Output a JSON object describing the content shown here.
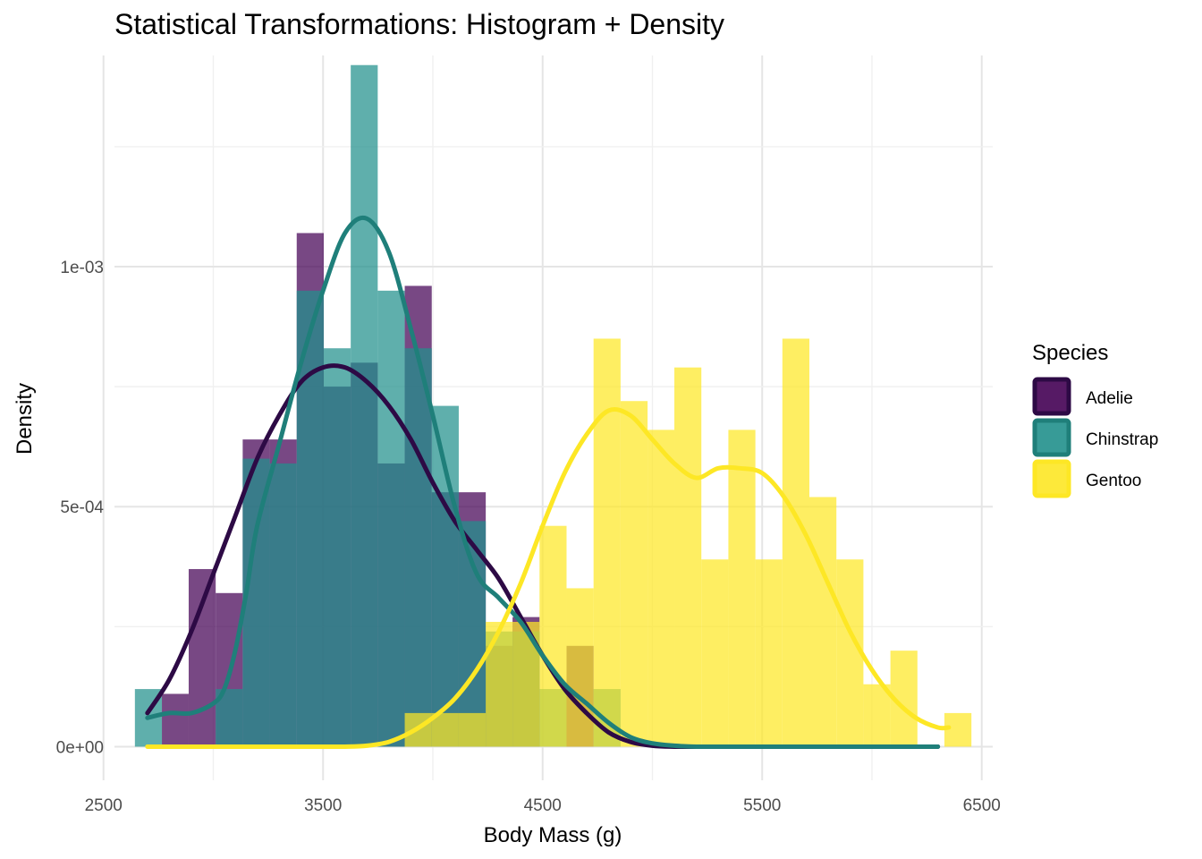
{
  "chart_data": {
    "type": "histogram+density",
    "title": "Statistical Transformations: Histogram + Density",
    "xlabel": "Body Mass (g)",
    "ylabel": "Density",
    "xlim": [
      2550,
      6550
    ],
    "ylim": [
      -7e-05,
      0.00144
    ],
    "x_ticks": [
      2500,
      3500,
      4500,
      5500,
      6500
    ],
    "x_tick_labels": [
      "2500",
      "3500",
      "4500",
      "5500",
      "6500"
    ],
    "y_ticks": [
      0,
      0.0005,
      0.001
    ],
    "y_tick_labels": [
      "0e+00",
      "5e-04",
      "1e-03"
    ],
    "grid": true,
    "legend": {
      "title": "Species",
      "placement": "right"
    },
    "bin_width": 122.86,
    "series": [
      {
        "name": "Adelie",
        "color": "#440154",
        "line_color": "#2d0a45",
        "bins": [
          {
            "x0": 2766,
            "x1": 2888,
            "density": 0.00011
          },
          {
            "x0": 2888,
            "x1": 3011,
            "density": 0.00037
          },
          {
            "x0": 3011,
            "x1": 3134,
            "density": 0.00032
          },
          {
            "x0": 3134,
            "x1": 3257,
            "density": 0.00064
          },
          {
            "x0": 3257,
            "x1": 3380,
            "density": 0.00064
          },
          {
            "x0": 3380,
            "x1": 3503,
            "density": 0.00107
          },
          {
            "x0": 3503,
            "x1": 3626,
            "density": 0.00075
          },
          {
            "x0": 3626,
            "x1": 3749,
            "density": 0.0008
          },
          {
            "x0": 3749,
            "x1": 3872,
            "density": 0.00059
          },
          {
            "x0": 3872,
            "x1": 3995,
            "density": 0.00096
          },
          {
            "x0": 3995,
            "x1": 4118,
            "density": 0.00053
          },
          {
            "x0": 4118,
            "x1": 4241,
            "density": 0.00053
          },
          {
            "x0": 4241,
            "x1": 4363,
            "density": 0.00021
          },
          {
            "x0": 4363,
            "x1": 4486,
            "density": 0.00027
          },
          {
            "x0": 4609,
            "x1": 4732,
            "density": 0.00021
          }
        ],
        "density_curve": [
          [
            2700,
            7e-05
          ],
          [
            2800,
            0.00014
          ],
          [
            2900,
            0.00024
          ],
          [
            3000,
            0.00036
          ],
          [
            3100,
            0.00048
          ],
          [
            3200,
            0.0006
          ],
          [
            3300,
            0.00069
          ],
          [
            3400,
            0.00076
          ],
          [
            3500,
            0.00079
          ],
          [
            3600,
            0.00079
          ],
          [
            3700,
            0.00076
          ],
          [
            3800,
            0.00071
          ],
          [
            3900,
            0.00064
          ],
          [
            4000,
            0.00055
          ],
          [
            4100,
            0.00047
          ],
          [
            4200,
            0.00041
          ],
          [
            4300,
            0.00035
          ],
          [
            4400,
            0.00027
          ],
          [
            4500,
            0.00019
          ],
          [
            4600,
            0.00012
          ],
          [
            4700,
            7e-05
          ],
          [
            4800,
            3e-05
          ],
          [
            4900,
            1e-05
          ],
          [
            5000,
            2e-06
          ],
          [
            5100,
            0.0
          ],
          [
            5200,
            0.0
          ],
          [
            5400,
            0.0
          ],
          [
            5600,
            0.0
          ],
          [
            5800,
            0.0
          ],
          [
            6000,
            0.0
          ],
          [
            6300,
            0.0
          ]
        ]
      },
      {
        "name": "Chinstrap",
        "color": "#21908c",
        "line_color": "#1f7f7a",
        "bins": [
          {
            "x0": 2643,
            "x1": 2766,
            "density": 0.00012
          },
          {
            "x0": 3011,
            "x1": 3134,
            "density": 0.00012
          },
          {
            "x0": 3134,
            "x1": 3257,
            "density": 0.0006
          },
          {
            "x0": 3257,
            "x1": 3380,
            "density": 0.00059
          },
          {
            "x0": 3380,
            "x1": 3503,
            "density": 0.00095
          },
          {
            "x0": 3503,
            "x1": 3626,
            "density": 0.00083
          },
          {
            "x0": 3626,
            "x1": 3749,
            "density": 0.00142
          },
          {
            "x0": 3749,
            "x1": 3872,
            "density": 0.00095
          },
          {
            "x0": 3872,
            "x1": 3995,
            "density": 0.00083
          },
          {
            "x0": 3995,
            "x1": 4118,
            "density": 0.00071
          },
          {
            "x0": 4118,
            "x1": 4241,
            "density": 0.00047
          },
          {
            "x0": 4241,
            "x1": 4363,
            "density": 0.00024
          },
          {
            "x0": 4363,
            "x1": 4486,
            "density": 0.00024
          },
          {
            "x0": 4486,
            "x1": 4609,
            "density": 0.00012
          },
          {
            "x0": 4732,
            "x1": 4855,
            "density": 0.00012
          }
        ],
        "density_curve": [
          [
            2700,
            6e-05
          ],
          [
            2800,
            7e-05
          ],
          [
            2900,
            7e-05
          ],
          [
            3000,
            9e-05
          ],
          [
            3050,
            0.00012
          ],
          [
            3100,
            0.0002
          ],
          [
            3150,
            0.00032
          ],
          [
            3200,
            0.00046
          ],
          [
            3300,
            0.00063
          ],
          [
            3400,
            0.0008
          ],
          [
            3500,
            0.00095
          ],
          [
            3600,
            0.00107
          ],
          [
            3700,
            0.0011
          ],
          [
            3800,
            0.00103
          ],
          [
            3900,
            0.00087
          ],
          [
            4000,
            0.00069
          ],
          [
            4100,
            0.0005
          ],
          [
            4200,
            0.00036
          ],
          [
            4300,
            0.00031
          ],
          [
            4400,
            0.00026
          ],
          [
            4500,
            0.00019
          ],
          [
            4600,
            0.00013
          ],
          [
            4700,
            9e-05
          ],
          [
            4800,
            5e-05
          ],
          [
            4900,
            2e-05
          ],
          [
            5000,
            7e-06
          ],
          [
            5100,
            2e-06
          ],
          [
            5200,
            0.0
          ],
          [
            5400,
            0.0
          ],
          [
            5600,
            0.0
          ],
          [
            5800,
            0.0
          ],
          [
            6000,
            0.0
          ],
          [
            6300,
            0.0
          ]
        ]
      },
      {
        "name": "Gentoo",
        "color": "#fde725",
        "line_color": "#fde725",
        "bins": [
          {
            "x0": 3872,
            "x1": 3995,
            "density": 7e-05
          },
          {
            "x0": 3995,
            "x1": 4118,
            "density": 7e-05
          },
          {
            "x0": 4118,
            "x1": 4241,
            "density": 7e-05
          },
          {
            "x0": 4241,
            "x1": 4363,
            "density": 0.00026
          },
          {
            "x0": 4363,
            "x1": 4486,
            "density": 0.00026
          },
          {
            "x0": 4486,
            "x1": 4609,
            "density": 0.00046
          },
          {
            "x0": 4609,
            "x1": 4732,
            "density": 0.00033
          },
          {
            "x0": 4732,
            "x1": 4855,
            "density": 0.00085
          },
          {
            "x0": 4855,
            "x1": 4978,
            "density": 0.00072
          },
          {
            "x0": 4978,
            "x1": 5100,
            "density": 0.00066
          },
          {
            "x0": 5100,
            "x1": 5223,
            "density": 0.00079
          },
          {
            "x0": 5223,
            "x1": 5346,
            "density": 0.00039
          },
          {
            "x0": 5346,
            "x1": 5469,
            "density": 0.00066
          },
          {
            "x0": 5469,
            "x1": 5592,
            "density": 0.00039
          },
          {
            "x0": 5592,
            "x1": 5715,
            "density": 0.00085
          },
          {
            "x0": 5715,
            "x1": 5838,
            "density": 0.00052
          },
          {
            "x0": 5838,
            "x1": 5961,
            "density": 0.00039
          },
          {
            "x0": 5961,
            "x1": 6084,
            "density": 0.00013
          },
          {
            "x0": 6084,
            "x1": 6207,
            "density": 0.0002
          },
          {
            "x0": 6207,
            "x1": 6330,
            "density": 0.0
          },
          {
            "x0": 6330,
            "x1": 6453,
            "density": 7e-05
          }
        ],
        "density_curve": [
          [
            2700,
            0.0
          ],
          [
            3000,
            0.0
          ],
          [
            3300,
            0.0
          ],
          [
            3500,
            0.0
          ],
          [
            3600,
            0.0
          ],
          [
            3700,
            2e-06
          ],
          [
            3800,
            1e-05
          ],
          [
            3900,
            3e-05
          ],
          [
            4000,
            6e-05
          ],
          [
            4100,
            0.0001
          ],
          [
            4200,
            0.00016
          ],
          [
            4300,
            0.00024
          ],
          [
            4400,
            0.00034
          ],
          [
            4500,
            0.00046
          ],
          [
            4600,
            0.00057
          ],
          [
            4700,
            0.00065
          ],
          [
            4800,
            0.0007
          ],
          [
            4900,
            0.00069
          ],
          [
            5000,
            0.00064
          ],
          [
            5100,
            0.00059
          ],
          [
            5200,
            0.00056
          ],
          [
            5300,
            0.00058
          ],
          [
            5400,
            0.00058
          ],
          [
            5500,
            0.00057
          ],
          [
            5600,
            0.00052
          ],
          [
            5700,
            0.00044
          ],
          [
            5800,
            0.00034
          ],
          [
            5900,
            0.00024
          ],
          [
            6000,
            0.00016
          ],
          [
            6100,
            0.0001
          ],
          [
            6200,
            6e-05
          ],
          [
            6300,
            4e-05
          ],
          [
            6350,
            4e-05
          ]
        ]
      }
    ]
  }
}
